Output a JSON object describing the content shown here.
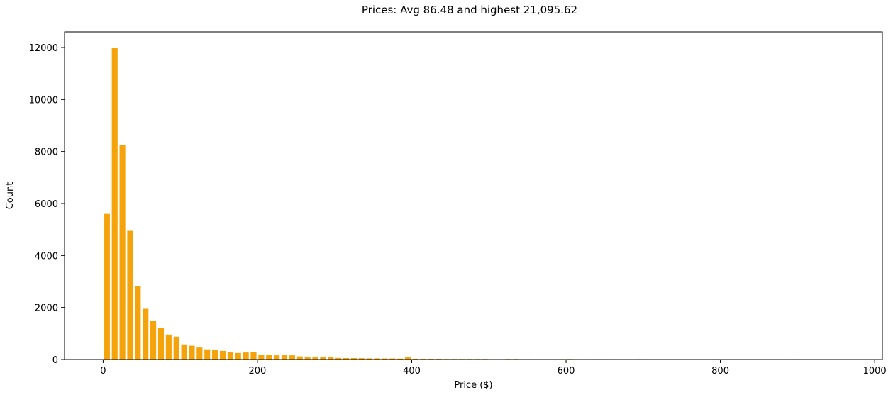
{
  "chart_data": {
    "type": "bar",
    "title": "Prices: Avg 86.48 and highest 21,095.62",
    "xlabel": "Price ($)",
    "ylabel": "Count",
    "xlim": [
      -50,
      1010
    ],
    "ylim": [
      0,
      12600
    ],
    "xticks": [
      0,
      200,
      400,
      600,
      800,
      1000
    ],
    "yticks": [
      0,
      2000,
      4000,
      6000,
      8000,
      10000,
      12000
    ],
    "bar_width": 7.5,
    "bar_color": "#f5a30a",
    "grid": false,
    "legend": "none",
    "x": [
      5,
      15,
      25,
      35,
      45,
      55,
      65,
      75,
      85,
      95,
      105,
      115,
      125,
      135,
      145,
      155,
      165,
      175,
      185,
      195,
      205,
      215,
      225,
      235,
      245,
      255,
      265,
      275,
      285,
      295,
      305,
      315,
      325,
      335,
      345,
      355,
      365,
      375,
      385,
      395,
      405,
      415,
      425,
      435,
      445,
      455,
      465,
      475,
      485,
      495,
      525,
      535,
      545,
      555,
      565,
      575,
      585,
      595,
      605,
      635,
      645,
      655,
      665,
      695,
      705,
      745,
      795,
      835,
      845,
      875,
      895,
      945,
      985
    ],
    "values": [
      5600,
      12000,
      8250,
      4950,
      2820,
      1950,
      1500,
      1220,
      960,
      880,
      580,
      530,
      460,
      390,
      360,
      330,
      300,
      250,
      270,
      290,
      180,
      170,
      160,
      165,
      160,
      120,
      110,
      110,
      90,
      100,
      60,
      55,
      55,
      50,
      45,
      45,
      40,
      40,
      35,
      80,
      30,
      25,
      25,
      25,
      20,
      20,
      20,
      20,
      20,
      20,
      20,
      20,
      15,
      15,
      15,
      15,
      15,
      15,
      20,
      15,
      15,
      15,
      10,
      15,
      10,
      10,
      15,
      10,
      10,
      10,
      15,
      10,
      10
    ]
  }
}
